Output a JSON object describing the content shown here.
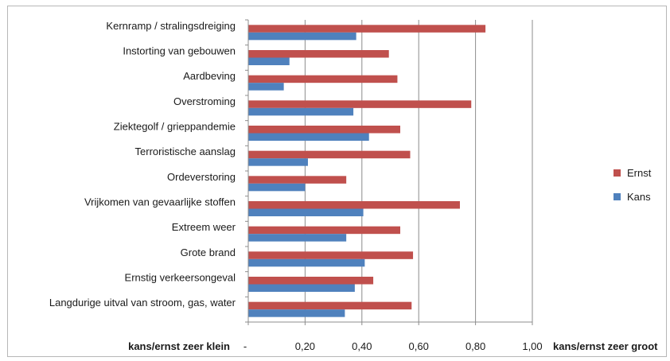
{
  "chart_data": {
    "type": "bar",
    "orientation": "horizontal",
    "categories": [
      "Kernramp / stralingsdreiging",
      "Instorting van gebouwen",
      "Aardbeving",
      "Overstroming",
      "Ziektegolf / grieppandemie",
      "Terroristische aanslag",
      "Ordeverstoring",
      "Vrijkomen van gevaarlijke stoffen",
      "Extreem weer",
      "Grote brand",
      "Ernstig verkeersongeval",
      "Langdurige uitval van stroom, gas, water"
    ],
    "series": [
      {
        "name": "Ernst",
        "color": "#c0504d",
        "values": [
          0.835,
          0.495,
          0.525,
          0.785,
          0.535,
          0.57,
          0.345,
          0.745,
          0.535,
          0.58,
          0.44,
          0.575
        ]
      },
      {
        "name": "Kans",
        "color": "#4f81bd",
        "values": [
          0.38,
          0.145,
          0.125,
          0.37,
          0.425,
          0.21,
          0.2,
          0.405,
          0.345,
          0.41,
          0.375,
          0.34
        ]
      }
    ],
    "xlim": [
      0,
      1
    ],
    "x_ticks": [
      "-",
      "0,20",
      "0,40",
      "0,60",
      "0,80",
      "1,00"
    ],
    "x_tick_values": [
      0,
      0.2,
      0.4,
      0.6,
      0.8,
      1.0
    ],
    "x_left_label": "kans/ernst zeer klein",
    "x_right_label": "kans/ernst zeer groot",
    "grid": "vertical",
    "legend": "right",
    "legend_entries": [
      "Ernst",
      "Kans"
    ]
  }
}
